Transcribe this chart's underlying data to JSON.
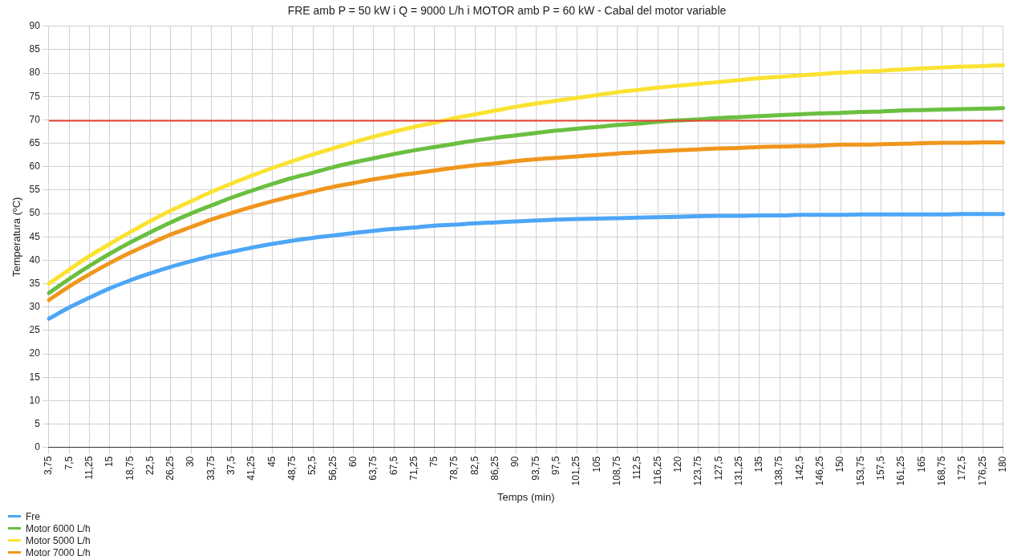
{
  "chart_data": {
    "type": "line",
    "title": "FRE amb P = 50 kW i Q = 9000 L/h i MOTOR amb P = 60 kW - Cabal del motor variable",
    "xlabel": "Temps (min)",
    "ylabel": "Temperatura (ºC)",
    "categories": [
      "3,75",
      "7,5",
      "11,25",
      "15",
      "18,75",
      "22,5",
      "26,25",
      "30",
      "33,75",
      "37,5",
      "41,25",
      "45",
      "48,75",
      "52,5",
      "56,25",
      "60",
      "63,75",
      "67,5",
      "71,25",
      "75",
      "78,75",
      "82,5",
      "86,25",
      "90",
      "93,75",
      "97,5",
      "101,25",
      "105",
      "108,75",
      "112,5",
      "116,25",
      "120",
      "123,75",
      "127,5",
      "131,25",
      "135",
      "138,75",
      "142,5",
      "146,25",
      "150",
      "153,75",
      "157,5",
      "161,25",
      "165",
      "168,75",
      "172,5",
      "176,25",
      "180"
    ],
    "series": [
      {
        "name": "Fre",
        "color": "#4da6f7",
        "values": [
          27.5,
          29.9,
          32.0,
          34.0,
          35.7,
          37.2,
          38.6,
          39.8,
          40.9,
          41.8,
          42.7,
          43.5,
          44.2,
          44.8,
          45.3,
          45.8,
          46.3,
          46.7,
          47.0,
          47.4,
          47.6,
          47.9,
          48.1,
          48.3,
          48.5,
          48.7,
          48.8,
          48.9,
          49.0,
          49.1,
          49.2,
          49.3,
          49.4,
          49.5,
          49.5,
          49.6,
          49.6,
          49.7,
          49.7,
          49.7,
          49.8,
          49.8,
          49.8,
          49.8,
          49.8,
          49.9,
          49.9,
          49.9
        ]
      },
      {
        "name": "Motor 6000 L/h",
        "color": "#6abf40",
        "values": [
          33.0,
          36.0,
          38.8,
          41.4,
          43.8,
          46.0,
          48.1,
          50.0,
          51.7,
          53.4,
          54.9,
          56.3,
          57.6,
          58.7,
          59.9,
          60.9,
          61.8,
          62.7,
          63.5,
          64.2,
          64.9,
          65.6,
          66.2,
          66.7,
          67.2,
          67.7,
          68.1,
          68.5,
          68.9,
          69.2,
          69.6,
          69.9,
          70.1,
          70.4,
          70.6,
          70.8,
          71.0,
          71.2,
          71.4,
          71.5,
          71.7,
          71.8,
          72.0,
          72.1,
          72.2,
          72.3,
          72.4,
          72.5
        ]
      },
      {
        "name": "Motor 5000 L/h",
        "color": "#fbe232",
        "values": [
          35.0,
          38.0,
          40.9,
          43.5,
          46.0,
          48.4,
          50.6,
          52.6,
          54.6,
          56.4,
          58.1,
          59.7,
          61.2,
          62.6,
          63.9,
          65.2,
          66.4,
          67.5,
          68.5,
          69.4,
          70.4,
          71.2,
          72.0,
          72.8,
          73.5,
          74.1,
          74.7,
          75.3,
          75.9,
          76.4,
          76.9,
          77.3,
          77.7,
          78.1,
          78.5,
          78.9,
          79.2,
          79.5,
          79.8,
          80.1,
          80.3,
          80.5,
          80.8,
          81.0,
          81.2,
          81.4,
          81.5,
          81.7
        ]
      },
      {
        "name": "Motor 7000 L/h",
        "color": "#f0961e",
        "values": [
          31.5,
          34.4,
          37.0,
          39.4,
          41.6,
          43.6,
          45.5,
          47.1,
          48.7,
          50.1,
          51.4,
          52.6,
          53.7,
          54.7,
          55.7,
          56.5,
          57.3,
          58.0,
          58.6,
          59.2,
          59.8,
          60.3,
          60.7,
          61.2,
          61.6,
          61.9,
          62.2,
          62.5,
          62.8,
          63.1,
          63.3,
          63.5,
          63.7,
          63.9,
          64.0,
          64.2,
          64.3,
          64.4,
          64.5,
          64.7,
          64.7,
          64.8,
          64.9,
          65.0,
          65.1,
          65.1,
          65.2,
          65.2
        ]
      }
    ],
    "ref_lines": [
      {
        "axis": "y",
        "value": 69.8,
        "color": "#ea4335"
      }
    ],
    "ylim": [
      0,
      90
    ],
    "yticks": [
      0,
      5,
      10,
      15,
      20,
      25,
      30,
      35,
      40,
      45,
      50,
      55,
      60,
      65,
      70,
      75,
      80,
      85,
      90
    ],
    "grid": true,
    "legend": "bottom left",
    "marker": "none",
    "line_style": "solid"
  }
}
